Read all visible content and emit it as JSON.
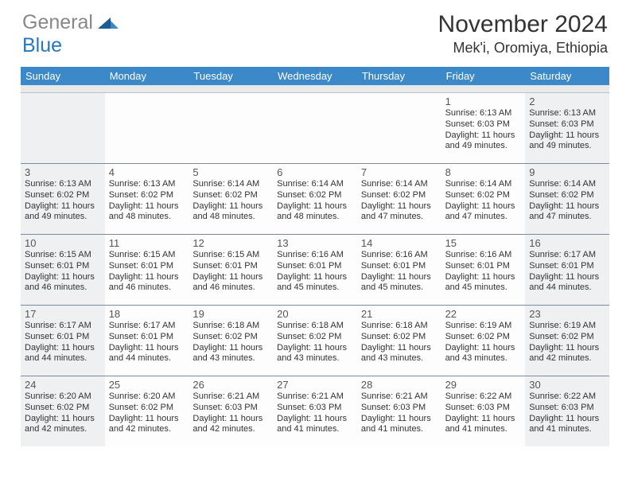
{
  "brand": {
    "gray": "General",
    "blue": "Blue"
  },
  "title": "November 2024",
  "location": "Mek'i, Oromiya, Ethiopia",
  "colors": {
    "header_bar": "#3b89c9",
    "header_text": "#ffffff",
    "shade_bg": "#eef0f1",
    "plain_bg": "#fdfdfd",
    "rule": "#7a8aa0",
    "logo_gray": "#888888",
    "logo_blue": "#2877bb",
    "tri_dark": "#1d5d93",
    "tri_light": "#3b89c9"
  },
  "dow": [
    "Sunday",
    "Monday",
    "Tuesday",
    "Wednesday",
    "Thursday",
    "Friday",
    "Saturday"
  ],
  "weeks": [
    [
      {
        "n": "",
        "sr": "",
        "ss": "",
        "d1": "",
        "d2": "",
        "shade": true
      },
      {
        "n": "",
        "sr": "",
        "ss": "",
        "d1": "",
        "d2": "",
        "shade": false
      },
      {
        "n": "",
        "sr": "",
        "ss": "",
        "d1": "",
        "d2": "",
        "shade": false
      },
      {
        "n": "",
        "sr": "",
        "ss": "",
        "d1": "",
        "d2": "",
        "shade": false
      },
      {
        "n": "",
        "sr": "",
        "ss": "",
        "d1": "",
        "d2": "",
        "shade": false
      },
      {
        "n": "1",
        "sr": "Sunrise: 6:13 AM",
        "ss": "Sunset: 6:03 PM",
        "d1": "Daylight: 11 hours",
        "d2": "and 49 minutes.",
        "shade": false
      },
      {
        "n": "2",
        "sr": "Sunrise: 6:13 AM",
        "ss": "Sunset: 6:03 PM",
        "d1": "Daylight: 11 hours",
        "d2": "and 49 minutes.",
        "shade": true
      }
    ],
    [
      {
        "n": "3",
        "sr": "Sunrise: 6:13 AM",
        "ss": "Sunset: 6:02 PM",
        "d1": "Daylight: 11 hours",
        "d2": "and 49 minutes.",
        "shade": true
      },
      {
        "n": "4",
        "sr": "Sunrise: 6:13 AM",
        "ss": "Sunset: 6:02 PM",
        "d1": "Daylight: 11 hours",
        "d2": "and 48 minutes.",
        "shade": false
      },
      {
        "n": "5",
        "sr": "Sunrise: 6:14 AM",
        "ss": "Sunset: 6:02 PM",
        "d1": "Daylight: 11 hours",
        "d2": "and 48 minutes.",
        "shade": false
      },
      {
        "n": "6",
        "sr": "Sunrise: 6:14 AM",
        "ss": "Sunset: 6:02 PM",
        "d1": "Daylight: 11 hours",
        "d2": "and 48 minutes.",
        "shade": false
      },
      {
        "n": "7",
        "sr": "Sunrise: 6:14 AM",
        "ss": "Sunset: 6:02 PM",
        "d1": "Daylight: 11 hours",
        "d2": "and 47 minutes.",
        "shade": false
      },
      {
        "n": "8",
        "sr": "Sunrise: 6:14 AM",
        "ss": "Sunset: 6:02 PM",
        "d1": "Daylight: 11 hours",
        "d2": "and 47 minutes.",
        "shade": false
      },
      {
        "n": "9",
        "sr": "Sunrise: 6:14 AM",
        "ss": "Sunset: 6:02 PM",
        "d1": "Daylight: 11 hours",
        "d2": "and 47 minutes.",
        "shade": true
      }
    ],
    [
      {
        "n": "10",
        "sr": "Sunrise: 6:15 AM",
        "ss": "Sunset: 6:01 PM",
        "d1": "Daylight: 11 hours",
        "d2": "and 46 minutes.",
        "shade": true
      },
      {
        "n": "11",
        "sr": "Sunrise: 6:15 AM",
        "ss": "Sunset: 6:01 PM",
        "d1": "Daylight: 11 hours",
        "d2": "and 46 minutes.",
        "shade": false
      },
      {
        "n": "12",
        "sr": "Sunrise: 6:15 AM",
        "ss": "Sunset: 6:01 PM",
        "d1": "Daylight: 11 hours",
        "d2": "and 46 minutes.",
        "shade": false
      },
      {
        "n": "13",
        "sr": "Sunrise: 6:16 AM",
        "ss": "Sunset: 6:01 PM",
        "d1": "Daylight: 11 hours",
        "d2": "and 45 minutes.",
        "shade": false
      },
      {
        "n": "14",
        "sr": "Sunrise: 6:16 AM",
        "ss": "Sunset: 6:01 PM",
        "d1": "Daylight: 11 hours",
        "d2": "and 45 minutes.",
        "shade": false
      },
      {
        "n": "15",
        "sr": "Sunrise: 6:16 AM",
        "ss": "Sunset: 6:01 PM",
        "d1": "Daylight: 11 hours",
        "d2": "and 45 minutes.",
        "shade": false
      },
      {
        "n": "16",
        "sr": "Sunrise: 6:17 AM",
        "ss": "Sunset: 6:01 PM",
        "d1": "Daylight: 11 hours",
        "d2": "and 44 minutes.",
        "shade": true
      }
    ],
    [
      {
        "n": "17",
        "sr": "Sunrise: 6:17 AM",
        "ss": "Sunset: 6:01 PM",
        "d1": "Daylight: 11 hours",
        "d2": "and 44 minutes.",
        "shade": true
      },
      {
        "n": "18",
        "sr": "Sunrise: 6:17 AM",
        "ss": "Sunset: 6:01 PM",
        "d1": "Daylight: 11 hours",
        "d2": "and 44 minutes.",
        "shade": false
      },
      {
        "n": "19",
        "sr": "Sunrise: 6:18 AM",
        "ss": "Sunset: 6:02 PM",
        "d1": "Daylight: 11 hours",
        "d2": "and 43 minutes.",
        "shade": false
      },
      {
        "n": "20",
        "sr": "Sunrise: 6:18 AM",
        "ss": "Sunset: 6:02 PM",
        "d1": "Daylight: 11 hours",
        "d2": "and 43 minutes.",
        "shade": false
      },
      {
        "n": "21",
        "sr": "Sunrise: 6:18 AM",
        "ss": "Sunset: 6:02 PM",
        "d1": "Daylight: 11 hours",
        "d2": "and 43 minutes.",
        "shade": false
      },
      {
        "n": "22",
        "sr": "Sunrise: 6:19 AM",
        "ss": "Sunset: 6:02 PM",
        "d1": "Daylight: 11 hours",
        "d2": "and 43 minutes.",
        "shade": false
      },
      {
        "n": "23",
        "sr": "Sunrise: 6:19 AM",
        "ss": "Sunset: 6:02 PM",
        "d1": "Daylight: 11 hours",
        "d2": "and 42 minutes.",
        "shade": true
      }
    ],
    [
      {
        "n": "24",
        "sr": "Sunrise: 6:20 AM",
        "ss": "Sunset: 6:02 PM",
        "d1": "Daylight: 11 hours",
        "d2": "and 42 minutes.",
        "shade": true
      },
      {
        "n": "25",
        "sr": "Sunrise: 6:20 AM",
        "ss": "Sunset: 6:02 PM",
        "d1": "Daylight: 11 hours",
        "d2": "and 42 minutes.",
        "shade": false
      },
      {
        "n": "26",
        "sr": "Sunrise: 6:21 AM",
        "ss": "Sunset: 6:03 PM",
        "d1": "Daylight: 11 hours",
        "d2": "and 42 minutes.",
        "shade": false
      },
      {
        "n": "27",
        "sr": "Sunrise: 6:21 AM",
        "ss": "Sunset: 6:03 PM",
        "d1": "Daylight: 11 hours",
        "d2": "and 41 minutes.",
        "shade": false
      },
      {
        "n": "28",
        "sr": "Sunrise: 6:21 AM",
        "ss": "Sunset: 6:03 PM",
        "d1": "Daylight: 11 hours",
        "d2": "and 41 minutes.",
        "shade": false
      },
      {
        "n": "29",
        "sr": "Sunrise: 6:22 AM",
        "ss": "Sunset: 6:03 PM",
        "d1": "Daylight: 11 hours",
        "d2": "and 41 minutes.",
        "shade": false
      },
      {
        "n": "30",
        "sr": "Sunrise: 6:22 AM",
        "ss": "Sunset: 6:03 PM",
        "d1": "Daylight: 11 hours",
        "d2": "and 41 minutes.",
        "shade": true
      }
    ]
  ]
}
